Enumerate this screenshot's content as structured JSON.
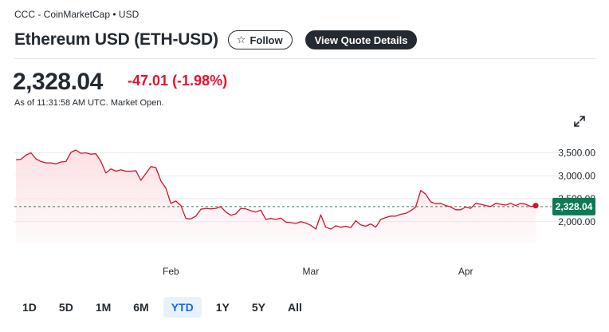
{
  "header": {
    "source": "CCC - CoinMarketCap • USD",
    "title": "Ethereum USD (ETH-USD)",
    "follow_label": "Follow",
    "quote_button_label": "View Quote Details"
  },
  "quote": {
    "price": "2,328.04",
    "change": "-47.01",
    "change_percent": "(-1.98%)",
    "as_of": "As of 11:31:58 AM UTC. Market Open."
  },
  "icons": {
    "follow": "star-icon",
    "expand": "expand-icon"
  },
  "colors": {
    "line": "#d90f2b",
    "fill": "#fbe1e4",
    "price_tag": "#0b7a55",
    "negative": "#eb0f29",
    "accent": "#0f69ff"
  },
  "range": {
    "options": [
      "1D",
      "5D",
      "1M",
      "6M",
      "YTD",
      "1Y",
      "5Y",
      "All"
    ],
    "selected": "YTD"
  },
  "chart_data": {
    "type": "area",
    "title": "",
    "xlabel": "",
    "ylabel": "",
    "ylim": [
      1700,
      3700
    ],
    "yticks": [
      2000,
      2500,
      3000,
      3500
    ],
    "ytick_labels": [
      "2,000.00",
      "2,500.00",
      "3,000.00",
      "3,500.00"
    ],
    "xtick_labels": [
      {
        "label": "Feb",
        "date": "2025-02-01"
      },
      {
        "label": "Mar",
        "date": "2025-03-01"
      },
      {
        "label": "Apr",
        "date": "2025-04-01"
      }
    ],
    "reference_line": 2328.04,
    "last_value_label": "2,328.04",
    "grid": true,
    "series": [
      {
        "x": [
          "2025-01-01",
          "2025-01-02",
          "2025-01-03",
          "2025-01-04",
          "2025-01-05",
          "2025-01-06",
          "2025-01-07",
          "2025-01-08",
          "2025-01-09",
          "2025-01-10",
          "2025-01-11",
          "2025-01-12",
          "2025-01-13",
          "2025-01-14",
          "2025-01-15",
          "2025-01-16",
          "2025-01-17",
          "2025-01-18",
          "2025-01-19",
          "2025-01-20",
          "2025-01-21",
          "2025-01-22",
          "2025-01-23",
          "2025-01-24",
          "2025-01-25",
          "2025-01-26",
          "2025-01-27",
          "2025-01-28",
          "2025-01-29",
          "2025-01-30",
          "2025-01-31",
          "2025-02-01",
          "2025-02-02",
          "2025-02-03",
          "2025-02-04",
          "2025-02-05",
          "2025-02-06",
          "2025-02-07",
          "2025-02-08",
          "2025-02-09",
          "2025-02-10",
          "2025-02-11",
          "2025-02-12",
          "2025-02-13",
          "2025-02-14",
          "2025-02-15",
          "2025-02-16",
          "2025-02-17",
          "2025-02-18",
          "2025-02-19",
          "2025-02-20",
          "2025-02-21",
          "2025-02-22",
          "2025-02-23",
          "2025-02-24",
          "2025-02-25",
          "2025-02-26",
          "2025-02-27",
          "2025-02-28",
          "2025-03-01",
          "2025-03-02",
          "2025-03-03",
          "2025-03-04",
          "2025-03-05",
          "2025-03-06",
          "2025-03-07",
          "2025-03-08",
          "2025-03-09",
          "2025-03-10",
          "2025-03-11",
          "2025-03-12",
          "2025-03-13",
          "2025-03-14",
          "2025-03-15",
          "2025-03-16",
          "2025-03-17",
          "2025-03-18",
          "2025-03-19",
          "2025-03-20",
          "2025-03-21",
          "2025-03-22",
          "2025-03-23",
          "2025-03-24",
          "2025-03-25",
          "2025-03-26",
          "2025-03-27",
          "2025-03-28",
          "2025-03-29",
          "2025-03-30",
          "2025-03-31",
          "2025-04-01",
          "2025-04-02",
          "2025-04-03",
          "2025-04-04",
          "2025-04-05",
          "2025-04-06",
          "2025-04-07",
          "2025-04-08",
          "2025-04-09",
          "2025-04-10",
          "2025-04-11",
          "2025-04-12",
          "2025-04-13",
          "2025-04-14",
          "2025-04-15"
        ],
        "values": [
          3350,
          3360,
          3450,
          3500,
          3370,
          3310,
          3280,
          3280,
          3260,
          3300,
          3310,
          3510,
          3560,
          3490,
          3500,
          3470,
          3480,
          3310,
          3060,
          3150,
          3100,
          3130,
          3100,
          3100,
          3110,
          2900,
          3050,
          3200,
          3180,
          2890,
          2730,
          2400,
          2450,
          2350,
          2070,
          2060,
          2120,
          2270,
          2290,
          2280,
          2290,
          2330,
          2210,
          2140,
          2170,
          2290,
          2280,
          2240,
          2210,
          2250,
          2050,
          2070,
          2050,
          2080,
          1990,
          1980,
          1960,
          2000,
          1970,
          1920,
          1840,
          2150,
          1880,
          1840,
          1910,
          1880,
          1900,
          1870,
          2020,
          1930,
          1900,
          1950,
          1880,
          2050,
          2090,
          2120,
          2120,
          2160,
          2180,
          2240,
          2320,
          2680,
          2600,
          2430,
          2390,
          2400,
          2350,
          2320,
          2260,
          2260,
          2320,
          2290,
          2400,
          2380,
          2350,
          2330,
          2400,
          2380,
          2360,
          2400,
          2350,
          2400,
          2380,
          2330,
          2350
        ]
      }
    ]
  }
}
